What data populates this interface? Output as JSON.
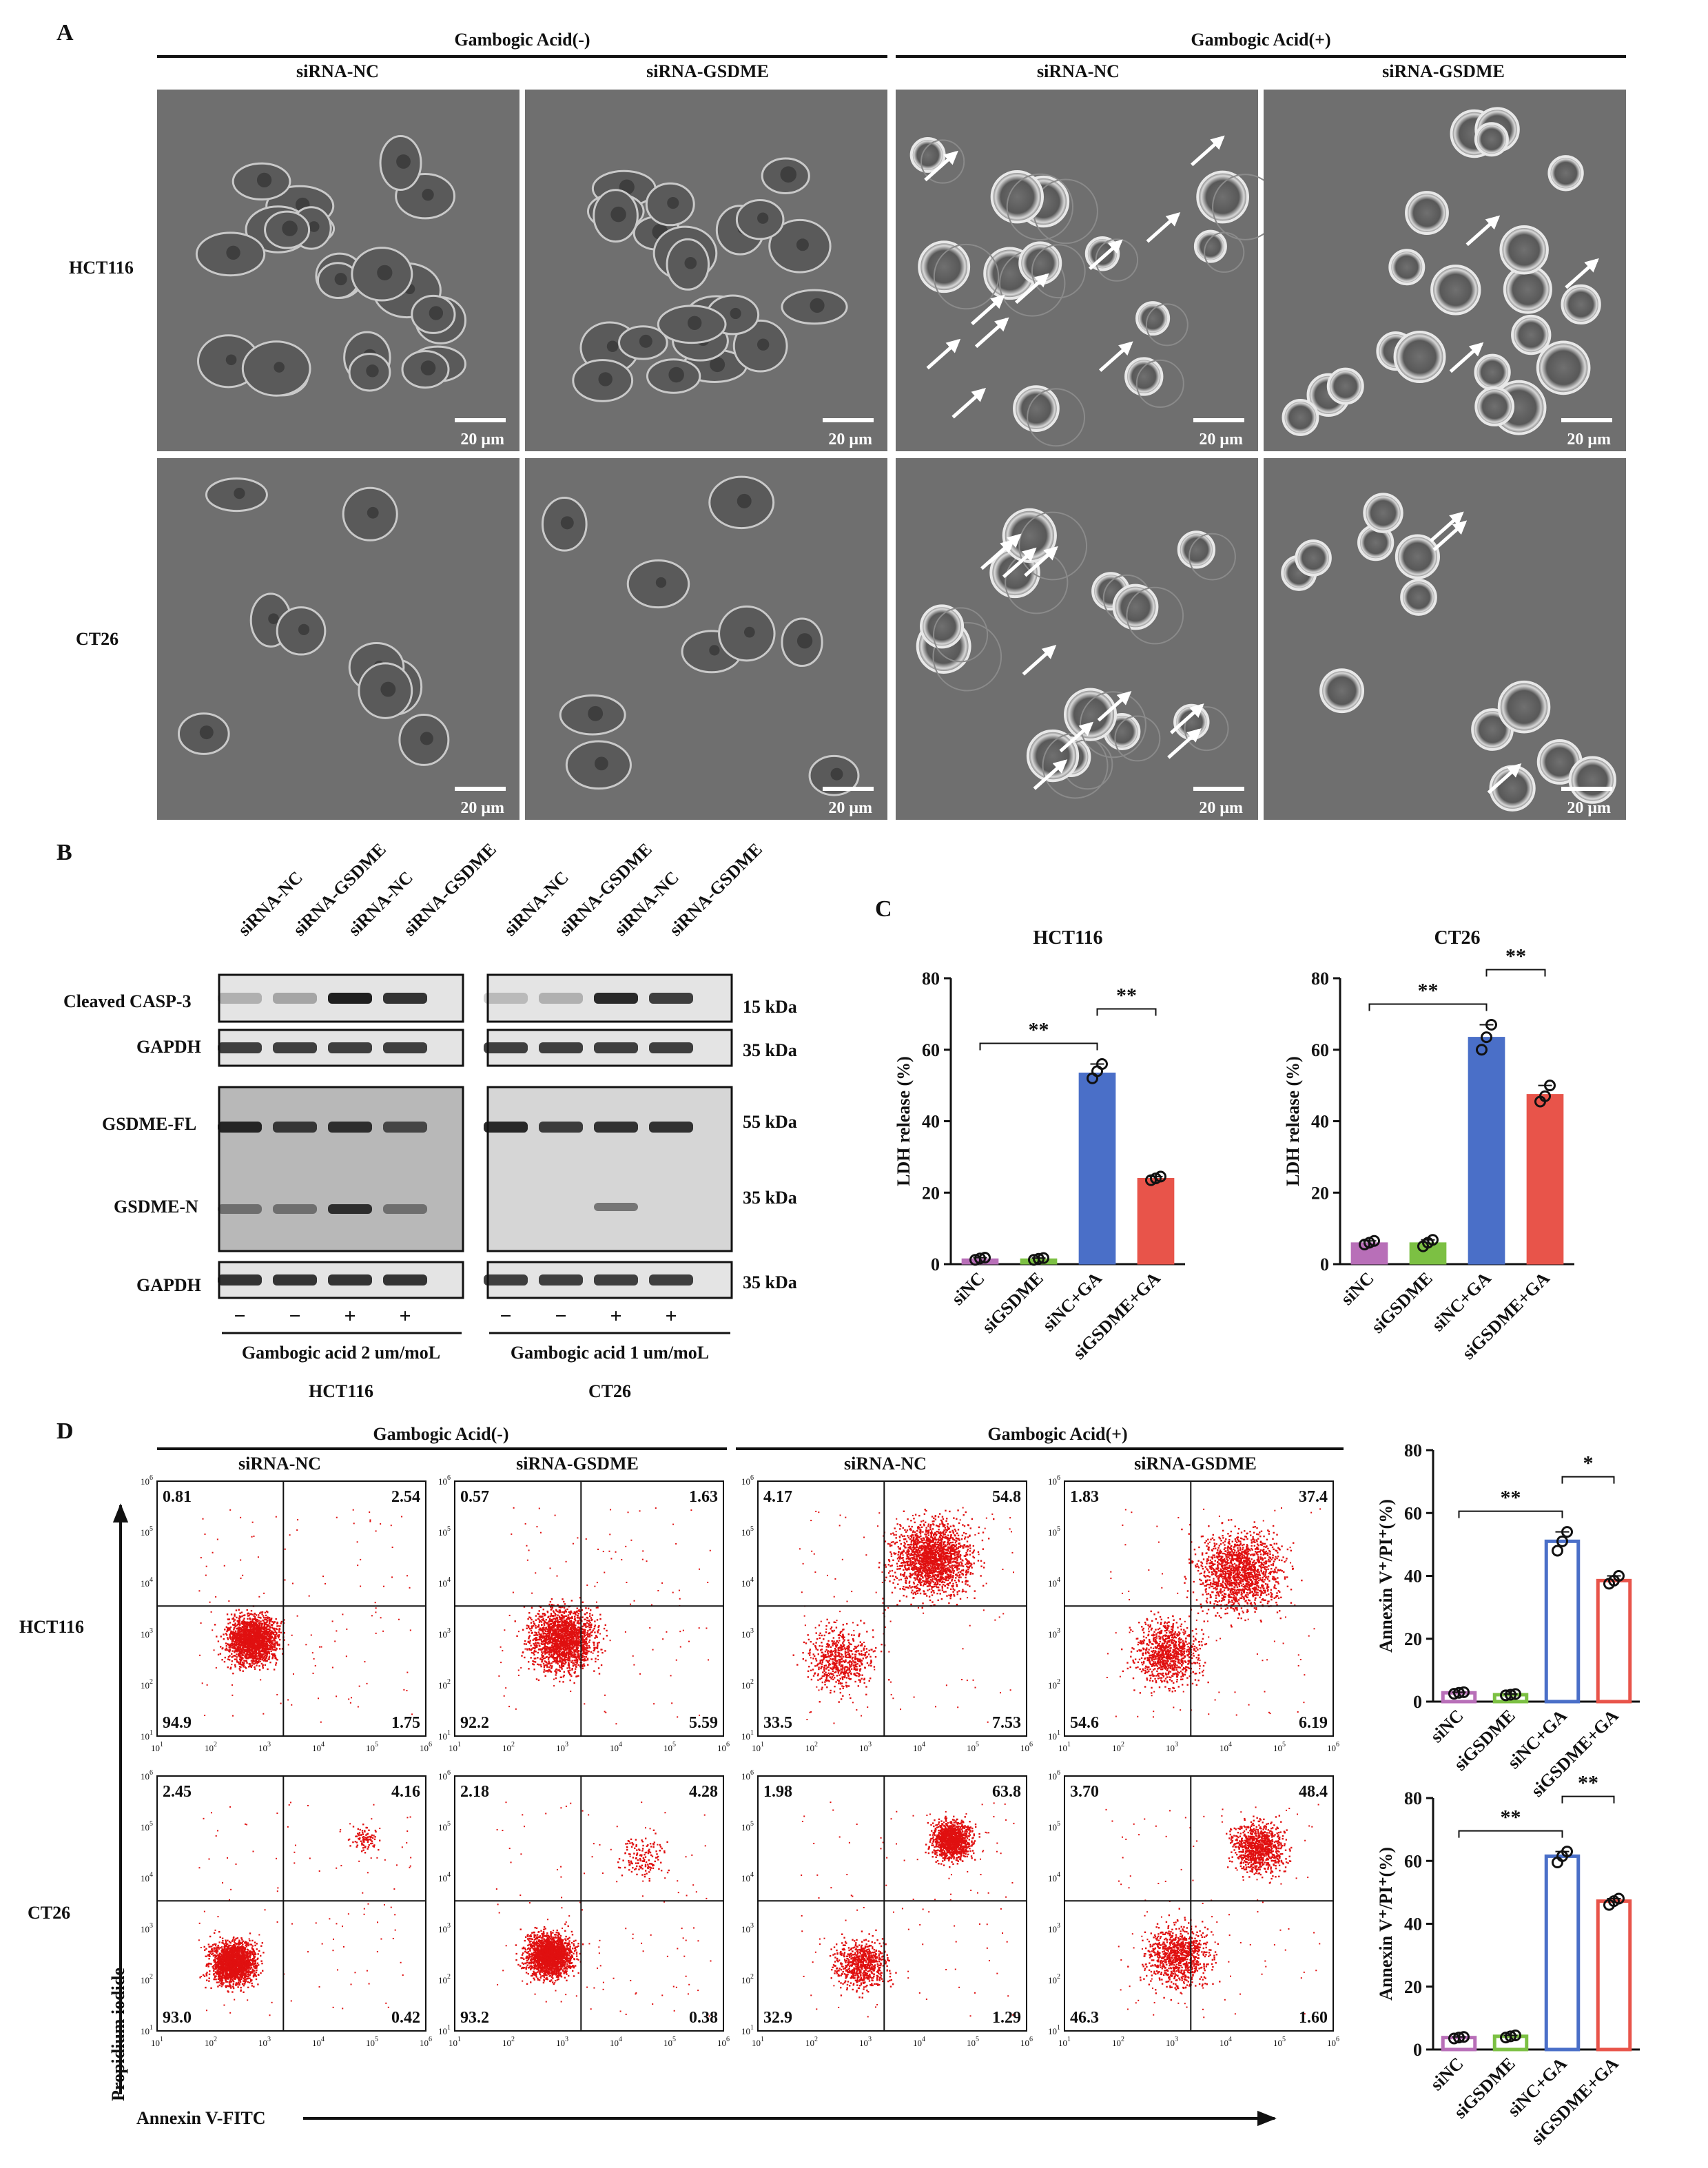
{
  "panels": {
    "A": {
      "letter": "A",
      "group_neg": "Gambogic Acid(-)",
      "group_pos": "Gambogic Acid(+)",
      "columns": [
        "siRNA-NC",
        "siRNA-GSDME",
        "siRNA-NC",
        "siRNA-GSDME"
      ],
      "rows": [
        "HCT116",
        "CT26"
      ],
      "scale_bar": "20 μm"
    },
    "B": {
      "letter": "B",
      "lane_labels": [
        "siRNA-NC",
        "siRNA-GSDME",
        "siRNA-NC",
        "siRNA-GSDME"
      ],
      "bands_top": [
        "Cleaved CASP-3",
        "GAPDH"
      ],
      "bands_bottom": [
        "GSDME-FL",
        "GSDME-N",
        "GAPDH"
      ],
      "markers": [
        "15 kDa",
        "35 kDa",
        "55 kDa",
        "35 kDa",
        "35 kDa"
      ],
      "treatment_signs": [
        "−",
        "−",
        "+",
        "+"
      ],
      "treatment_left": "Gambogic acid 2 um/moL",
      "treatment_right": "Gambogic acid 1 um/moL",
      "cell_left": "HCT116",
      "cell_right": "CT26"
    },
    "C": {
      "letter": "C",
      "sig": "**"
    },
    "D": {
      "letter": "D",
      "group_neg": "Gambogic Acid(-)",
      "group_pos": "Gambogic Acid(+)",
      "columns": [
        "siRNA-NC",
        "siRNA-GSDME",
        "siRNA-NC",
        "siRNA-GSDME"
      ],
      "rows": [
        "HCT116",
        "CT26"
      ],
      "y_axis": "Propidium iodide",
      "x_axis": "Annexin V-FITC",
      "quadrants": [
        [
          {
            "ul": "0.81",
            "ur": "2.54",
            "ll": "94.9",
            "lr": "1.75"
          },
          {
            "ul": "0.57",
            "ur": "1.63",
            "ll": "92.2",
            "lr": "5.59"
          },
          {
            "ul": "4.17",
            "ur": "54.8",
            "ll": "33.5",
            "lr": "7.53"
          },
          {
            "ul": "1.83",
            "ur": "37.4",
            "ll": "54.6",
            "lr": "6.19"
          }
        ],
        [
          {
            "ul": "2.45",
            "ur": "4.16",
            "ll": "93.0",
            "lr": "0.42"
          },
          {
            "ul": "2.18",
            "ur": "4.28",
            "ll": "93.2",
            "lr": "0.38"
          },
          {
            "ul": "1.98",
            "ur": "63.8",
            "ll": "32.9",
            "lr": "1.29"
          },
          {
            "ul": "3.70",
            "ur": "48.4",
            "ll": "46.3",
            "lr": "1.60"
          }
        ]
      ],
      "decades": [
        "10",
        "10",
        "10",
        "10",
        "10",
        "10"
      ],
      "exps": [
        "1",
        "2",
        "3",
        "4",
        "5",
        "6"
      ]
    }
  },
  "chart_data": [
    {
      "type": "bar",
      "title": "HCT116",
      "ylabel": "LDH release (%)",
      "categories": [
        "siNC",
        "siGSDME",
        "siNC+GA",
        "siGSDME+GA"
      ],
      "values": [
        1.5,
        1.5,
        53.5,
        24
      ],
      "points": [
        [
          1.2,
          1.6,
          1.8
        ],
        [
          1.2,
          1.5,
          1.7
        ],
        [
          52,
          54,
          56
        ],
        [
          23.5,
          24,
          24.5
        ]
      ],
      "colors": [
        "#b86fb8",
        "#7cc043",
        "#4a6fc8",
        "#e8544a"
      ],
      "ylim": [
        0,
        80
      ],
      "yticks": [
        "0",
        "20",
        "40",
        "60",
        "80"
      ],
      "significance": [
        "**",
        "**"
      ],
      "style": "filled"
    },
    {
      "type": "bar",
      "title": "CT26",
      "ylabel": "LDH release (%)",
      "categories": [
        "siNC",
        "siGSDME",
        "siNC+GA",
        "siGSDME+GA"
      ],
      "values": [
        6,
        6,
        63.5,
        47.5
      ],
      "points": [
        [
          5.5,
          6,
          6.5
        ],
        [
          5,
          6,
          6.8
        ],
        [
          60,
          63.5,
          67
        ],
        [
          45.5,
          47,
          50
        ]
      ],
      "colors": [
        "#b86fb8",
        "#7cc043",
        "#4a6fc8",
        "#e8544a"
      ],
      "ylim": [
        0,
        80
      ],
      "yticks": [
        "0",
        "20",
        "40",
        "60",
        "80"
      ],
      "significance": [
        "**",
        "**"
      ],
      "style": "filled"
    },
    {
      "type": "bar",
      "title": "",
      "ylabel": "Annexin V⁺/PI⁺(%)",
      "categories": [
        "siNC",
        "siGSDME",
        "siNC+GA",
        "siGSDME+GA"
      ],
      "values": [
        2.8,
        2.2,
        51,
        38.5
      ],
      "points": [
        [
          2.5,
          2.8,
          3
        ],
        [
          2,
          2.2,
          2.4
        ],
        [
          48,
          51,
          54
        ],
        [
          37.5,
          38.5,
          40
        ]
      ],
      "colors": [
        "#b86fb8",
        "#7cc043",
        "#4a6fc8",
        "#e8544a"
      ],
      "ylim": [
        0,
        80
      ],
      "yticks": [
        "0",
        "20",
        "40",
        "60",
        "80"
      ],
      "significance": [
        "**",
        "*"
      ],
      "style": "outline"
    },
    {
      "type": "bar",
      "title": "",
      "ylabel": "Annexin V⁺/PI⁺(%)",
      "categories": [
        "siNC",
        "siGSDME",
        "siNC+GA",
        "siGSDME+GA"
      ],
      "values": [
        3.8,
        4.2,
        61.5,
        47.2
      ],
      "points": [
        [
          3.5,
          3.8,
          4
        ],
        [
          3.8,
          4.2,
          4.5
        ],
        [
          59.5,
          61.5,
          63
        ],
        [
          46,
          47.2,
          48
        ]
      ],
      "colors": [
        "#b86fb8",
        "#7cc043",
        "#4a6fc8",
        "#e8544a"
      ],
      "ylim": [
        0,
        80
      ],
      "yticks": [
        "0",
        "20",
        "40",
        "60",
        "80"
      ],
      "significance": [
        "**",
        "**"
      ],
      "style": "outline"
    }
  ]
}
